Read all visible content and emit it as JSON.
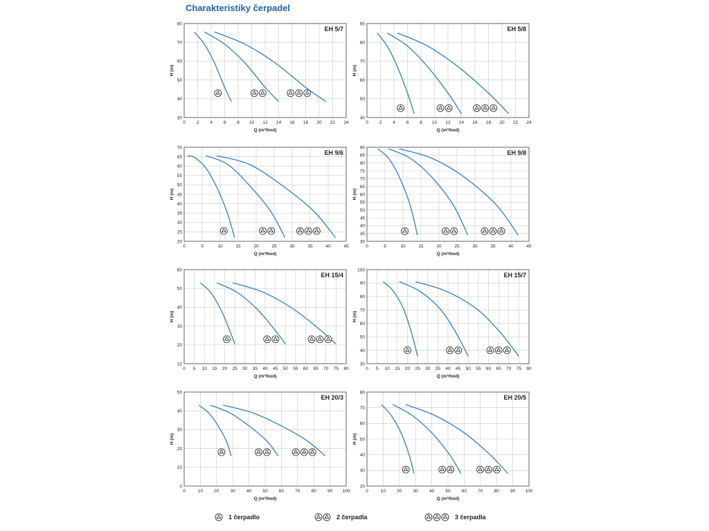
{
  "page_title": "Charakteristiky čerpadel",
  "colors": {
    "curve": "#2e7fc2",
    "title": "#1f5fae",
    "grid": "#c9c9c9",
    "axis": "#555555",
    "text": "#222222"
  },
  "icons": {
    "pump": "pump-circle-triangle-icon"
  },
  "legend": [
    {
      "count": 1,
      "label": "1 čerpadlo"
    },
    {
      "count": 2,
      "label": "2 čerpadla"
    },
    {
      "count": 3,
      "label": "3 čerpadla"
    }
  ],
  "chart_data": [
    {
      "type": "line",
      "title": "EH 5/7",
      "xlabel": "Q (m³/hod)",
      "ylabel": "H (m)",
      "xlim": [
        0,
        24
      ],
      "ylim": [
        30,
        80
      ],
      "xticks": [
        0,
        2,
        4,
        6,
        8,
        10,
        12,
        14,
        16,
        18,
        20,
        22,
        24
      ],
      "yticks": [
        30,
        40,
        50,
        60,
        70,
        80
      ],
      "grid": true,
      "series": [
        {
          "x": [
            1.5,
            3,
            4.5,
            6,
            7
          ],
          "y": [
            75.5,
            69,
            59,
            46,
            38.5
          ],
          "pumps": 1,
          "marker": [
            5,
            43
          ]
        },
        {
          "x": [
            3,
            6,
            9,
            12,
            14
          ],
          "y": [
            75.5,
            69,
            59,
            46,
            38.5
          ],
          "pumps": 2,
          "marker": [
            11,
            43
          ]
        },
        {
          "x": [
            4.5,
            9,
            13.5,
            18,
            21
          ],
          "y": [
            75.5,
            69,
            59,
            46,
            38.5
          ],
          "pumps": 3,
          "marker": [
            17,
            43
          ]
        }
      ]
    },
    {
      "type": "line",
      "title": "EH 5/8",
      "xlabel": "Q (m³/hod)",
      "ylabel": "H (m)",
      "xlim": [
        0,
        24
      ],
      "ylim": [
        40,
        90
      ],
      "xticks": [
        0,
        2,
        4,
        6,
        8,
        10,
        12,
        14,
        16,
        18,
        20,
        22,
        24
      ],
      "yticks": [
        40,
        50,
        60,
        70,
        80,
        90
      ],
      "grid": true,
      "series": [
        {
          "x": [
            1.5,
            3,
            4.5,
            6,
            7
          ],
          "y": [
            85,
            78,
            67,
            53,
            42
          ],
          "pumps": 1,
          "marker": [
            5,
            45
          ]
        },
        {
          "x": [
            3,
            6,
            9,
            12,
            14
          ],
          "y": [
            85,
            78,
            67,
            53,
            42
          ],
          "pumps": 2,
          "marker": [
            11.5,
            45
          ]
        },
        {
          "x": [
            4.5,
            9,
            13.5,
            18,
            21
          ],
          "y": [
            85,
            78,
            67,
            53,
            42
          ],
          "pumps": 3,
          "marker": [
            17.5,
            45
          ]
        }
      ]
    },
    {
      "type": "line",
      "title": "EH 9/6",
      "xlabel": "Q (m³/hod)",
      "ylabel": "H (m)",
      "xlim": [
        0,
        45
      ],
      "ylim": [
        20,
        70
      ],
      "xticks": [
        0,
        5,
        10,
        15,
        20,
        25,
        30,
        35,
        40,
        45
      ],
      "yticks": [
        20,
        25,
        30,
        35,
        40,
        45,
        50,
        55,
        60,
        65,
        70
      ],
      "grid": true,
      "series": [
        {
          "x": [
            1,
            3,
            6,
            9,
            12,
            14
          ],
          "y": [
            65.5,
            64.5,
            59,
            49,
            35,
            22
          ],
          "pumps": 1,
          "marker": [
            11,
            25.5
          ]
        },
        {
          "x": [
            6,
            12,
            18,
            24,
            28
          ],
          "y": [
            65.5,
            61,
            50,
            36,
            22
          ],
          "pumps": 2,
          "marker": [
            23,
            25.5
          ]
        },
        {
          "x": [
            9,
            18,
            27,
            36,
            42
          ],
          "y": [
            65.5,
            61,
            50,
            36,
            22
          ],
          "pumps": 3,
          "marker": [
            34.5,
            25.5
          ]
        }
      ]
    },
    {
      "type": "line",
      "title": "EH 9/8",
      "xlabel": "Q (m³/hod)",
      "ylabel": "H (m)",
      "xlim": [
        0,
        45
      ],
      "ylim": [
        30,
        90
      ],
      "xticks": [
        0,
        5,
        10,
        15,
        20,
        25,
        30,
        35,
        40,
        45
      ],
      "yticks": [
        30,
        35,
        40,
        45,
        50,
        55,
        60,
        65,
        70,
        75,
        80,
        85,
        90
      ],
      "grid": true,
      "series": [
        {
          "x": [
            3,
            6,
            9,
            12,
            14
          ],
          "y": [
            89,
            83,
            71,
            53,
            34
          ],
          "pumps": 1,
          "marker": [
            10.5,
            36.5
          ]
        },
        {
          "x": [
            6,
            12,
            18,
            24,
            28
          ],
          "y": [
            89,
            83,
            71,
            53,
            34
          ],
          "pumps": 2,
          "marker": [
            23,
            36.5
          ]
        },
        {
          "x": [
            9,
            18,
            27,
            36,
            42
          ],
          "y": [
            89,
            83,
            71,
            53,
            34
          ],
          "pumps": 3,
          "marker": [
            35,
            36.5
          ]
        }
      ]
    },
    {
      "type": "line",
      "title": "EH 15/4",
      "xlabel": "Q (m³/hod)",
      "ylabel": "H (m)",
      "xlim": [
        0,
        80
      ],
      "ylim": [
        10,
        60
      ],
      "xticks": [
        0,
        5,
        10,
        15,
        20,
        25,
        30,
        35,
        40,
        45,
        50,
        55,
        60,
        65,
        70,
        75,
        80
      ],
      "yticks": [
        10,
        20,
        30,
        40,
        50,
        60
      ],
      "grid": true,
      "series": [
        {
          "x": [
            8,
            13,
            18,
            22,
            25
          ],
          "y": [
            53,
            48,
            39,
            29,
            20.5
          ],
          "pumps": 1,
          "marker": [
            21,
            23
          ]
        },
        {
          "x": [
            16,
            26,
            36,
            44,
            50
          ],
          "y": [
            53,
            48,
            39,
            29,
            20.5
          ],
          "pumps": 2,
          "marker": [
            43,
            23
          ]
        },
        {
          "x": [
            24,
            39,
            54,
            66,
            75
          ],
          "y": [
            53,
            48,
            39,
            29,
            20.5
          ],
          "pumps": 3,
          "marker": [
            67,
            23
          ]
        }
      ]
    },
    {
      "type": "line",
      "title": "EH 15/7",
      "xlabel": "Q (m³/hod)",
      "ylabel": "H (m)",
      "xlim": [
        0,
        80
      ],
      "ylim": [
        30,
        100
      ],
      "xticks": [
        0,
        5,
        10,
        15,
        20,
        25,
        30,
        35,
        40,
        45,
        50,
        55,
        60,
        65,
        70,
        75,
        80
      ],
      "yticks": [
        30,
        40,
        50,
        60,
        70,
        80,
        90,
        100
      ],
      "grid": true,
      "series": [
        {
          "x": [
            8,
            13,
            18,
            22,
            25
          ],
          "y": [
            91,
            84,
            71,
            53,
            35.5
          ],
          "pumps": 1,
          "marker": [
            20,
            40
          ]
        },
        {
          "x": [
            16,
            26,
            36,
            44,
            50
          ],
          "y": [
            91,
            84,
            71,
            53,
            35.5
          ],
          "pumps": 2,
          "marker": [
            43,
            40
          ]
        },
        {
          "x": [
            24,
            39,
            54,
            66,
            75
          ],
          "y": [
            91,
            84,
            71,
            53,
            35.5
          ],
          "pumps": 3,
          "marker": [
            65,
            40
          ]
        }
      ]
    },
    {
      "type": "line",
      "title": "EH 20/3",
      "xlabel": "Q (m³/hod)",
      "ylabel": "H (m)",
      "xlim": [
        0,
        100
      ],
      "ylim": [
        0,
        50
      ],
      "xticks": [
        0,
        10,
        20,
        30,
        40,
        50,
        60,
        70,
        80,
        90,
        100
      ],
      "yticks": [
        0,
        10,
        20,
        30,
        40,
        50
      ],
      "grid": true,
      "series": [
        {
          "x": [
            9,
            15,
            21,
            26,
            29
          ],
          "y": [
            43,
            39,
            32,
            24,
            16
          ],
          "pumps": 1,
          "marker": [
            23,
            18
          ]
        },
        {
          "x": [
            16,
            28,
            40,
            51,
            58
          ],
          "y": [
            43,
            39,
            32,
            24,
            16
          ],
          "pumps": 2,
          "marker": [
            48.5,
            18
          ]
        },
        {
          "x": [
            24,
            42,
            60,
            76,
            87
          ],
          "y": [
            43,
            39,
            32,
            24,
            16
          ],
          "pumps": 3,
          "marker": [
            74,
            18
          ]
        }
      ]
    },
    {
      "type": "line",
      "title": "EH 20/5",
      "xlabel": "Q (m³/hod)",
      "ylabel": "H (m)",
      "xlim": [
        0,
        100
      ],
      "ylim": [
        20,
        80
      ],
      "xticks": [
        0,
        10,
        20,
        30,
        40,
        50,
        60,
        70,
        80,
        90,
        100
      ],
      "yticks": [
        20,
        30,
        40,
        50,
        60,
        70,
        80
      ],
      "grid": true,
      "series": [
        {
          "x": [
            9,
            15,
            21,
            26,
            29
          ],
          "y": [
            72,
            65,
            54,
            40,
            28
          ],
          "pumps": 1,
          "marker": [
            24,
            30.5
          ]
        },
        {
          "x": [
            16,
            28,
            40,
            51,
            58
          ],
          "y": [
            72,
            65,
            54,
            40,
            28
          ],
          "pumps": 2,
          "marker": [
            49,
            30.5
          ]
        },
        {
          "x": [
            24,
            42,
            60,
            76,
            87
          ],
          "y": [
            72,
            65,
            54,
            40,
            28
          ],
          "pumps": 3,
          "marker": [
            75,
            30.5
          ]
        }
      ]
    }
  ]
}
